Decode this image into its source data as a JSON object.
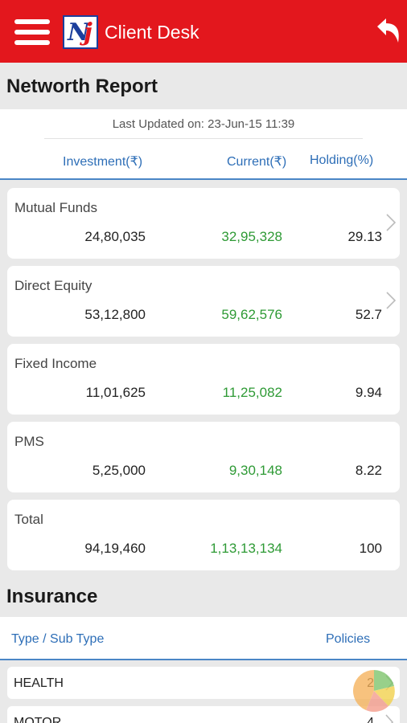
{
  "app": {
    "title": "Client Desk"
  },
  "networth": {
    "title": "Networth Report",
    "last_updated": "Last Updated on: 23-Jun-15  11:39",
    "columns": {
      "investment": "Investment(₹)",
      "current": "Current(₹)",
      "holding": "Holding(%)"
    },
    "rows": [
      {
        "label": "Mutual Funds",
        "investment": "24,80,035",
        "current": "32,95,328",
        "holding": "29.13"
      },
      {
        "label": "Direct Equity",
        "investment": "53,12,800",
        "current": "59,62,576",
        "holding": "52.7"
      },
      {
        "label": "Fixed Income",
        "investment": "11,01,625",
        "current": "11,25,082",
        "holding": "9.94"
      },
      {
        "label": "PMS",
        "investment": "5,25,000",
        "current": "9,30,148",
        "holding": "8.22"
      },
      {
        "label": "Total",
        "investment": "94,19,460",
        "current": "1,13,13,134",
        "holding": "100"
      }
    ]
  },
  "insurance": {
    "title": "Insurance",
    "columns": {
      "type": "Type / Sub Type",
      "policies": "Policies"
    },
    "rows": [
      {
        "label": "HEALTH",
        "count": "2"
      },
      {
        "label": "MOTOR",
        "count": "4"
      }
    ]
  },
  "colors": {
    "accent": "#e3171d",
    "header_text": "#2d6eb7",
    "positive": "#2e9a35"
  },
  "icons": [
    "menu-icon",
    "logo-icon",
    "back-icon",
    "chevron-right-icon",
    "pie-chart-icon"
  ]
}
